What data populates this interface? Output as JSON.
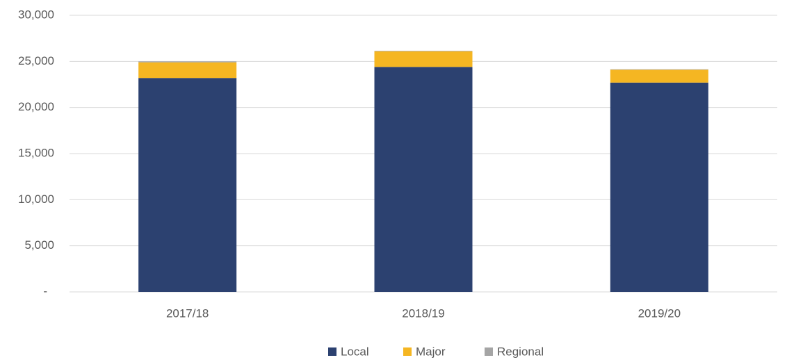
{
  "chart_data": {
    "type": "stacked_bar",
    "categories": [
      "2017/18",
      "2018/19",
      "2019/20"
    ],
    "series": [
      {
        "name": "Local",
        "color": "#2c4170",
        "values": [
          23200,
          24400,
          22700
        ]
      },
      {
        "name": "Major",
        "color": "#f5b622",
        "values": [
          1700,
          1700,
          1400
        ]
      },
      {
        "name": "Regional",
        "color": "#a5a5a5",
        "values": [
          100,
          50,
          50
        ]
      }
    ],
    "ylim": [
      0,
      30000
    ],
    "yticks": [
      {
        "value": 0,
        "label": "-"
      },
      {
        "value": 5000,
        "label": "5,000"
      },
      {
        "value": 10000,
        "label": "10,000"
      },
      {
        "value": 15000,
        "label": "15,000"
      },
      {
        "value": 20000,
        "label": "20,000"
      },
      {
        "value": 25000,
        "label": "25,000"
      },
      {
        "value": 30000,
        "label": "30,000"
      }
    ],
    "grid": true,
    "legend": "bottom"
  }
}
